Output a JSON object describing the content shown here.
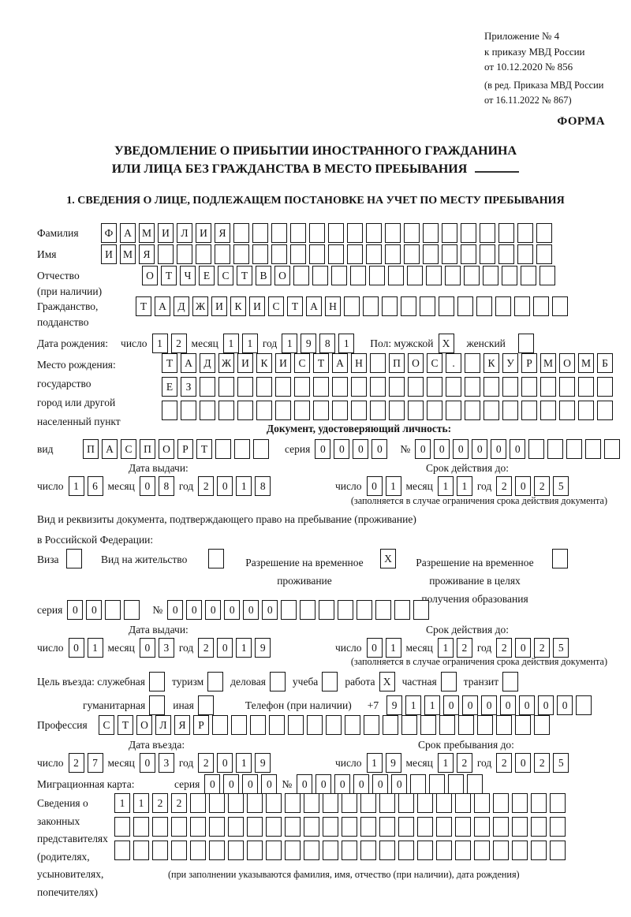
{
  "theme": {
    "ink": "#141414",
    "background": "#ffffff"
  },
  "header": {
    "appendix_lines": [
      "Приложение № 4",
      "к приказу МВД России",
      "от 10.12.2020 № 856"
    ],
    "revision_lines": [
      "(в ред. Приказа МВД России",
      "от 16.11.2022 № 867)"
    ],
    "form_label": "ФОРМА",
    "title_line1": "УВЕДОМЛЕНИЕ О ПРИБЫТИИ ИНОСТРАННОГО ГРАЖДАНИНА",
    "title_line2": "ИЛИ ЛИЦА БЕЗ ГРАЖДАНСТВА В МЕСТО ПРЕБЫВАНИЯ",
    "section1_heading": "1. СВЕДЕНИЯ О ЛИЦЕ, ПОДЛЕЖАЩЕМ ПОСТАНОВКЕ НА УЧЕТ ПО МЕСТУ ПРЕБЫВАНИЯ"
  },
  "person": {
    "surname": {
      "label": "Фамилия",
      "text": "ФАМИЛИЯ",
      "total": 24
    },
    "name": {
      "label": "Имя",
      "text": "ИМЯ",
      "total": 24
    },
    "patronymic": {
      "label": "Отчество",
      "label_note": "(при наличии)",
      "text": "ОТЧЕСТВО",
      "total": 22
    },
    "citizenship": {
      "label": "Гражданство,",
      "label2": "подданство",
      "text": "ТАДЖИКИСТАН",
      "total": 23
    },
    "birth_date": {
      "label": "Дата рождения:",
      "day_label": "число",
      "day": {
        "text": "12",
        "total": 2
      },
      "month_label": "месяц",
      "month": {
        "text": "11",
        "total": 2
      },
      "year_label": "год",
      "year": {
        "text": "1981",
        "total": 4
      }
    },
    "sex": {
      "label": "Пол: мужской",
      "male_checked": "X",
      "female_label": "женский",
      "female_checked": ""
    },
    "birth_place": {
      "labels": [
        "Место рождения:",
        "государство",
        "город или другой",
        "населенный пункт"
      ],
      "row1": {
        "text": "ТАДЖИКИСТАН ПОС. КУРМОМБ",
        "total": 24
      },
      "row2": {
        "text": "ЕЗ",
        "total": 24
      },
      "row3": {
        "text": "",
        "total": 24
      }
    }
  },
  "identity_doc": {
    "heading": "Документ, удостоверяющий личность:",
    "kind_label": "вид",
    "kind": {
      "text": "ПАСПОРТ",
      "total": 10
    },
    "series_label": "серия",
    "series": {
      "text": "0000",
      "total": 4
    },
    "number_label": "№",
    "number": {
      "text": "000000",
      "total": 11
    },
    "issue_heading": "Дата выдачи:",
    "issue": {
      "day_label": "число",
      "day": {
        "text": "16",
        "total": 2
      },
      "month_label": "месяц",
      "month": {
        "text": "08",
        "total": 2
      },
      "year_label": "год",
      "year": {
        "text": "2018",
        "total": 4
      }
    },
    "expiry_heading": "Срок действия до:",
    "expiry": {
      "day_label": "число",
      "day": {
        "text": "01",
        "total": 2
      },
      "month_label": "месяц",
      "month": {
        "text": "11",
        "total": 2
      },
      "year_label": "год",
      "year": {
        "text": "2025",
        "total": 4
      }
    },
    "expiry_note": "(заполняется в случае ограничения срока действия документа)"
  },
  "residence_doc": {
    "intro_line1": "Вид и реквизиты документа, подтверждающего право на пребывание (проживание)",
    "intro_line2": "в Российской Федерации:",
    "visa_label": "Виза",
    "visa_checked": "",
    "residence_permit_label": "Вид на жительство",
    "residence_permit_checked": "",
    "rvp_label_lines": [
      "Разрешение на временное",
      "проживание"
    ],
    "rvp_checked": "X",
    "rvp_edu_label_lines": [
      "Разрешение на временное",
      "проживание в целях",
      "получения образования"
    ],
    "rvp_edu_checked": "",
    "series_label": "серия",
    "series": {
      "text": "00",
      "total": 4
    },
    "number_label": "№",
    "number": {
      "text": "000000",
      "total": 14
    },
    "issue_heading": "Дата выдачи:",
    "issue": {
      "day_label": "число",
      "day": {
        "text": "01",
        "total": 2
      },
      "month_label": "месяц",
      "month": {
        "text": "03",
        "total": 2
      },
      "year_label": "год",
      "year": {
        "text": "2019",
        "total": 4
      }
    },
    "expiry_heading": "Срок действия до:",
    "expiry": {
      "day_label": "число",
      "day": {
        "text": "01",
        "total": 2
      },
      "month_label": "месяц",
      "month": {
        "text": "12",
        "total": 2
      },
      "year_label": "год",
      "year": {
        "text": "2025",
        "total": 4
      }
    },
    "expiry_note": "(заполняется в случае ограничения срока действия документа)"
  },
  "entry": {
    "purpose_prefix": "Цель въезда:",
    "purposes": [
      {
        "label": "служебная",
        "checked": ""
      },
      {
        "label": "туризм",
        "checked": ""
      },
      {
        "label": "деловая",
        "checked": ""
      },
      {
        "label": "учеба",
        "checked": ""
      },
      {
        "label": "работа",
        "checked": "X"
      },
      {
        "label": "частная",
        "checked": ""
      },
      {
        "label": "транзит",
        "checked": ""
      },
      {
        "label": "гуманитарная",
        "checked": ""
      },
      {
        "label": "иная",
        "checked": ""
      }
    ],
    "phone_label": "Телефон (при наличии)",
    "phone_prefix": "+7",
    "phone": {
      "text": "9110000000",
      "total": 11
    },
    "profession_label": "Профессия",
    "profession": {
      "text": "СТОЛЯР",
      "total": 24
    },
    "entry_date_heading": "Дата въезда:",
    "entry_date": {
      "day_label": "число",
      "day": {
        "text": "27",
        "total": 2
      },
      "month_label": "месяц",
      "month": {
        "text": "03",
        "total": 2
      },
      "year_label": "год",
      "year": {
        "text": "2019",
        "total": 4
      }
    },
    "stay_until_heading": "Срок пребывания до:",
    "stay_until": {
      "day_label": "число",
      "day": {
        "text": "19",
        "total": 2
      },
      "month_label": "месяц",
      "month": {
        "text": "12",
        "total": 2
      },
      "year_label": "год",
      "year": {
        "text": "2025",
        "total": 4
      }
    }
  },
  "migration_card": {
    "label": "Миграционная карта:",
    "series_label": "серия",
    "series": {
      "text": "0000",
      "total": 4
    },
    "number_label": "№",
    "number": {
      "text": "000000",
      "total": 10
    }
  },
  "representatives": {
    "label_lines": [
      "Сведения о",
      "законных",
      "представителях",
      "(родителях,",
      "усыновителях,",
      "попечителях)"
    ],
    "row1": {
      "text": "1122",
      "total": 24
    },
    "row2": {
      "text": "",
      "total": 24
    },
    "row3": {
      "text": "",
      "total": 24
    },
    "note": "(при заполнении указываются фамилия, имя, отчество (при наличии), дата рождения)"
  }
}
